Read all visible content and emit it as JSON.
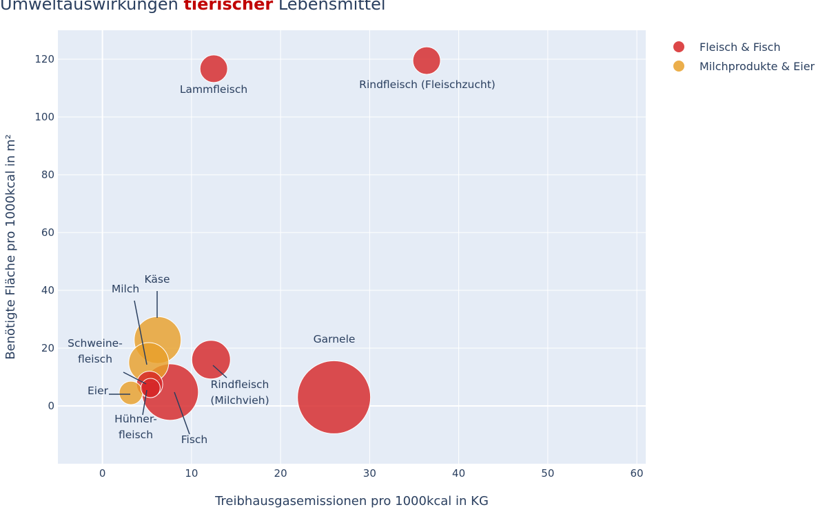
{
  "title": {
    "prefix": "Umweltauswirkungen",
    "highlight": "tierischer",
    "suffix": "Lebensmittel"
  },
  "chart_data": {
    "type": "scatter",
    "xlabel": "Treibhausgasemissionen pro 1000kcal in KG",
    "ylabel": "Benötigte Fläche pro 1000kcal in m²",
    "xlim": [
      -5,
      61
    ],
    "ylim": [
      -20,
      130
    ],
    "x_ticks": [
      0,
      10,
      20,
      30,
      40,
      50,
      60
    ],
    "y_ticks": [
      0,
      20,
      40,
      60,
      80,
      100,
      120
    ],
    "grid": true,
    "legend_position": "top-right",
    "series": [
      {
        "name": "Fleisch & Fisch",
        "color": "#d62728",
        "points": [
          {
            "label": "Rindfleisch (Fleischzucht)",
            "x": 36.4,
            "y": 119.5,
            "size": 20
          },
          {
            "label": "Lammfleisch",
            "x": 12.5,
            "y": 116.7,
            "size": 20
          },
          {
            "label": "Garnele",
            "x": 26.0,
            "y": 3.0,
            "size": 53
          },
          {
            "label": "Rindfleisch (Milchvieh)",
            "x": 12.2,
            "y": 16.0,
            "size": 28
          },
          {
            "label": "Fisch",
            "x": 7.6,
            "y": 4.8,
            "size": 41
          },
          {
            "label": "Schweinefleisch",
            "x": 5.3,
            "y": 7.5,
            "size": 19
          },
          {
            "label": "Hühnerfleisch",
            "x": 5.4,
            "y": 6.2,
            "size": 14
          }
        ]
      },
      {
        "name": "Milchprodukte & Eier",
        "color": "#e8a02b",
        "points": [
          {
            "label": "Käse",
            "x": 6.2,
            "y": 22.8,
            "size": 34
          },
          {
            "label": "Milch",
            "x": 5.2,
            "y": 15.0,
            "size": 29
          },
          {
            "label": "Eier",
            "x": 3.2,
            "y": 4.5,
            "size": 17
          }
        ]
      }
    ],
    "annotations": [
      {
        "lines": [
          "Rindfleisch (Fleischzucht)"
        ]
      },
      {
        "lines": [
          "Lammfleisch"
        ]
      },
      {
        "lines": [
          "Garnele"
        ]
      },
      {
        "lines": [
          "Rindfleisch",
          "(Milchvieh)"
        ]
      },
      {
        "lines": [
          "Fisch"
        ]
      },
      {
        "lines": [
          "Schweine-",
          "fleisch"
        ]
      },
      {
        "lines": [
          "Hühner-",
          "fleisch"
        ]
      },
      {
        "lines": [
          "Käse"
        ]
      },
      {
        "lines": [
          "Milch"
        ]
      },
      {
        "lines": [
          "Eier"
        ]
      }
    ]
  }
}
